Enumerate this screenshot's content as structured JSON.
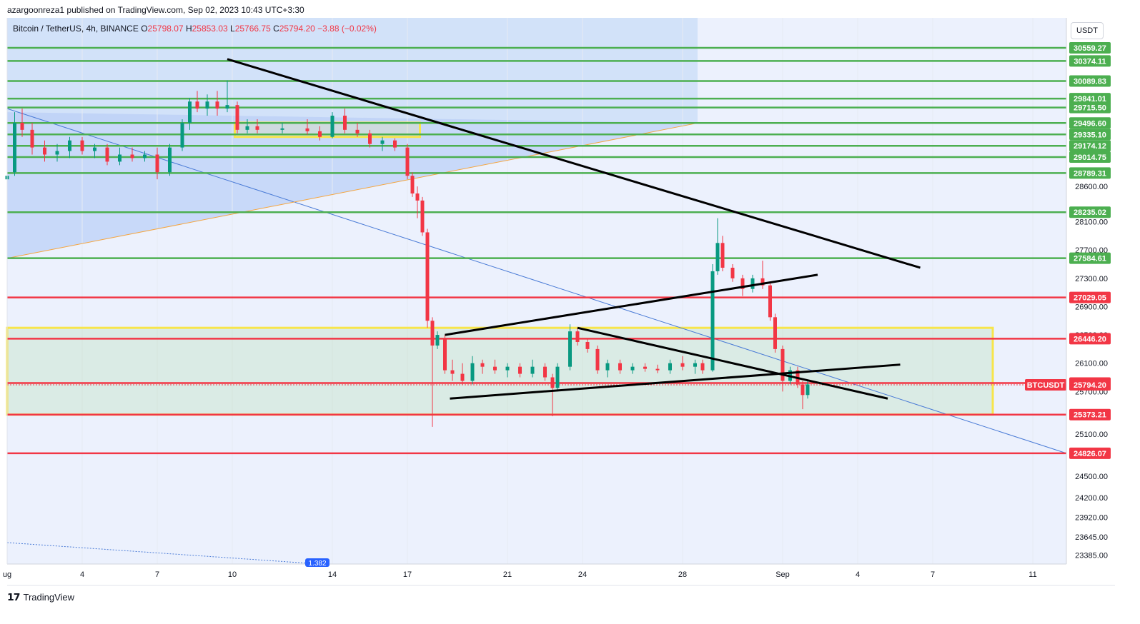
{
  "header": {
    "publish_line": "azargoonreza1 published on TradingView.com, Sep 02, 2023 10:43 UTC+3:30",
    "symbol": "Bitcoin / TetherUS, 4h, BINANCE",
    "ohlc": [
      {
        "k": "O",
        "v": "25798.07"
      },
      {
        "k": "H",
        "v": "25853.03"
      },
      {
        "k": "L",
        "v": "25766.75"
      },
      {
        "k": "C",
        "v": "25794.20"
      }
    ],
    "change": "−3.88 (−0.02%)",
    "currency": "USDT"
  },
  "footer": {
    "logo": "TradingView"
  },
  "colors": {
    "up": "#089981",
    "down": "#f23645",
    "green_level": "#4caf50",
    "red_level": "#f23645",
    "zone": "#f7e54b",
    "blue_shade": "#c9dcf7"
  },
  "chart_data": {
    "type": "candlestick",
    "price_range": [
      23385,
      30900
    ],
    "y_ticks": [
      "28600.00",
      "28100.00",
      "27700.00",
      "27300.00",
      "26900.00",
      "26500.00",
      "26100.00",
      "25700.00",
      "25100.00",
      "24500.00",
      "24200.00",
      "23920.00",
      "23645.00",
      "23385.00"
    ],
    "x_ticks": [
      {
        "label": "ug",
        "day": 1
      },
      {
        "label": "4",
        "day": 4
      },
      {
        "label": "7",
        "day": 7
      },
      {
        "label": "10",
        "day": 10
      },
      {
        "label": "14",
        "day": 14
      },
      {
        "label": "17",
        "day": 17
      },
      {
        "label": "21",
        "day": 21
      },
      {
        "label": "24",
        "day": 24
      },
      {
        "label": "28",
        "day": 28
      },
      {
        "label": "Sep",
        "day": 32
      },
      {
        "label": "4",
        "day": 35
      },
      {
        "label": "7",
        "day": 38
      },
      {
        "label": "11",
        "day": 42
      }
    ],
    "green_levels": [
      "30559.27",
      "30374.11",
      "30089.83",
      "29841.01",
      "29715.50",
      "29496.60",
      "29335.10",
      "29174.12",
      "29014.75",
      "28789.31",
      "28235.02",
      "27584.61"
    ],
    "red_levels": [
      "27029.05",
      "26446.20",
      "25819.58",
      "25373.21",
      "24826.07"
    ],
    "current_price": "25794.20",
    "current_label": "BTCUSDT",
    "fib_badge": "1.382",
    "zones": [
      {
        "day_from": 1,
        "day_to": 40.4,
        "price_from": 25373,
        "price_to": 26600
      },
      {
        "day_from": 10.1,
        "day_to": 17.5,
        "price_from": 29300,
        "price_to": 29500
      }
    ],
    "trendlines": [
      {
        "from": [
          9.8,
          30400
        ],
        "to": [
          37.5,
          27450
        ]
      },
      {
        "from": [
          18.5,
          26500
        ],
        "to": [
          33.4,
          27350
        ]
      },
      {
        "from": [
          18.7,
          25600
        ],
        "to": [
          36.7,
          26080
        ]
      },
      {
        "from": [
          23.8,
          26600
        ],
        "to": [
          36.2,
          25600
        ]
      }
    ],
    "series": [
      [
        "1",
        28700,
        28900,
        28600,
        28750
      ],
      [
        "1.3",
        28800,
        29650,
        28750,
        29500
      ],
      [
        "1.6",
        29500,
        29700,
        29300,
        29400
      ],
      [
        "2",
        29400,
        29500,
        29050,
        29150
      ],
      [
        "2.5",
        29150,
        29250,
        28950,
        29050
      ],
      [
        "3",
        29050,
        29200,
        28950,
        29100
      ],
      [
        "3.5",
        29100,
        29300,
        29000,
        29250
      ],
      [
        "4",
        29250,
        29300,
        29050,
        29100
      ],
      [
        "4.5",
        29100,
        29200,
        29000,
        29150
      ],
      [
        "5",
        29150,
        29200,
        28900,
        28950
      ],
      [
        "5.5",
        28950,
        29150,
        28900,
        29050
      ],
      [
        "6",
        29050,
        29150,
        28950,
        29000
      ],
      [
        "6.5",
        29000,
        29100,
        28950,
        29050
      ],
      [
        "7",
        29050,
        29150,
        28700,
        28800
      ],
      [
        "7.5",
        28800,
        29200,
        28750,
        29150
      ],
      [
        "8",
        29150,
        29550,
        29100,
        29500
      ],
      [
        "8.3",
        29500,
        29850,
        29400,
        29800
      ],
      [
        "8.6",
        29800,
        29950,
        29650,
        29700
      ],
      [
        "9",
        29700,
        29900,
        29600,
        29800
      ],
      [
        "9.4",
        29800,
        29950,
        29600,
        29700
      ],
      [
        "9.8",
        29700,
        30100,
        29650,
        29750
      ],
      [
        "10.2",
        29750,
        29800,
        29350,
        29400
      ],
      [
        "10.6",
        29400,
        29550,
        29350,
        29450
      ],
      [
        "11",
        29450,
        29550,
        29350,
        29400
      ],
      [
        "12",
        29400,
        29500,
        29350,
        29420
      ],
      [
        "13",
        29420,
        29550,
        29330,
        29380
      ],
      [
        "13.5",
        29380,
        29450,
        29250,
        29300
      ],
      [
        "14",
        29300,
        29650,
        29280,
        29600
      ],
      [
        "14.5",
        29600,
        29700,
        29350,
        29400
      ],
      [
        "15",
        29400,
        29500,
        29300,
        29350
      ],
      [
        "15.5",
        29350,
        29400,
        29150,
        29200
      ],
      [
        "16",
        29200,
        29300,
        29100,
        29250
      ],
      [
        "16.5",
        29250,
        29280,
        29100,
        29150
      ],
      [
        "17",
        29150,
        29200,
        28700,
        28750
      ],
      [
        "17.2",
        28750,
        28800,
        28450,
        28500
      ],
      [
        "17.4",
        28500,
        28600,
        28150,
        28400
      ],
      [
        "17.6",
        28400,
        28450,
        27900,
        27950
      ],
      [
        "17.8",
        27950,
        28000,
        26600,
        26700
      ],
      [
        "18",
        26700,
        26750,
        25200,
        26350
      ],
      [
        "18.2",
        26350,
        26550,
        26300,
        26500
      ],
      [
        "18.5",
        26450,
        26500,
        25950,
        26000
      ],
      [
        "18.8",
        26000,
        26150,
        25850,
        25950
      ],
      [
        "19.2",
        25950,
        26100,
        25800,
        25850
      ],
      [
        "19.6",
        25850,
        26200,
        25800,
        26100
      ],
      [
        "20",
        26100,
        26150,
        25950,
        26050
      ],
      [
        "20.5",
        26050,
        26150,
        25950,
        26000
      ],
      [
        "21",
        26000,
        26100,
        25900,
        26050
      ],
      [
        "21.5",
        26050,
        26100,
        25900,
        25950
      ],
      [
        "22",
        25950,
        26150,
        25900,
        26050
      ],
      [
        "22.5",
        26050,
        26100,
        25850,
        25900
      ],
      [
        "22.8",
        25900,
        25950,
        25350,
        25750
      ],
      [
        "23",
        25750,
        26100,
        25700,
        26050
      ],
      [
        "23.5",
        26050,
        26650,
        26000,
        26550
      ],
      [
        "23.8",
        26550,
        26600,
        26350,
        26400
      ],
      [
        "24.2",
        26400,
        26450,
        26250,
        26300
      ],
      [
        "24.6",
        26300,
        26350,
        25950,
        26000
      ],
      [
        "25",
        26000,
        26150,
        25900,
        26100
      ],
      [
        "25.5",
        26100,
        26150,
        25950,
        26000
      ],
      [
        "26",
        26000,
        26100,
        25950,
        26050
      ],
      [
        "26.5",
        26050,
        26100,
        25980,
        26020
      ],
      [
        "27",
        26020,
        26080,
        25960,
        26000
      ],
      [
        "27.5",
        26000,
        26150,
        25950,
        26100
      ],
      [
        "28",
        26100,
        26200,
        26000,
        26050
      ],
      [
        "28.5",
        26050,
        26150,
        25950,
        26100
      ],
      [
        "28.8",
        26100,
        26150,
        25950,
        26000
      ],
      [
        "29.2",
        26000,
        27500,
        25980,
        27400
      ],
      [
        "29.4",
        27400,
        28150,
        27350,
        27800
      ],
      [
        "29.6",
        27800,
        27900,
        27400,
        27450
      ],
      [
        "30",
        27450,
        27500,
        27250,
        27300
      ],
      [
        "30.4",
        27300,
        27350,
        27050,
        27150
      ],
      [
        "30.8",
        27150,
        27350,
        27100,
        27300
      ],
      [
        "31.2",
        27300,
        27550,
        27150,
        27200
      ],
      [
        "31.5",
        27200,
        27250,
        26700,
        26750
      ],
      [
        "31.7",
        26750,
        26800,
        26250,
        26300
      ],
      [
        "32",
        26300,
        26350,
        25700,
        25850
      ],
      [
        "32.3",
        25850,
        26050,
        25800,
        26000
      ],
      [
        "32.6",
        26000,
        26050,
        25750,
        25800
      ],
      [
        "32.8",
        25800,
        25850,
        25450,
        25650
      ],
      [
        "33",
        25650,
        25850,
        25600,
        25800
      ]
    ]
  }
}
